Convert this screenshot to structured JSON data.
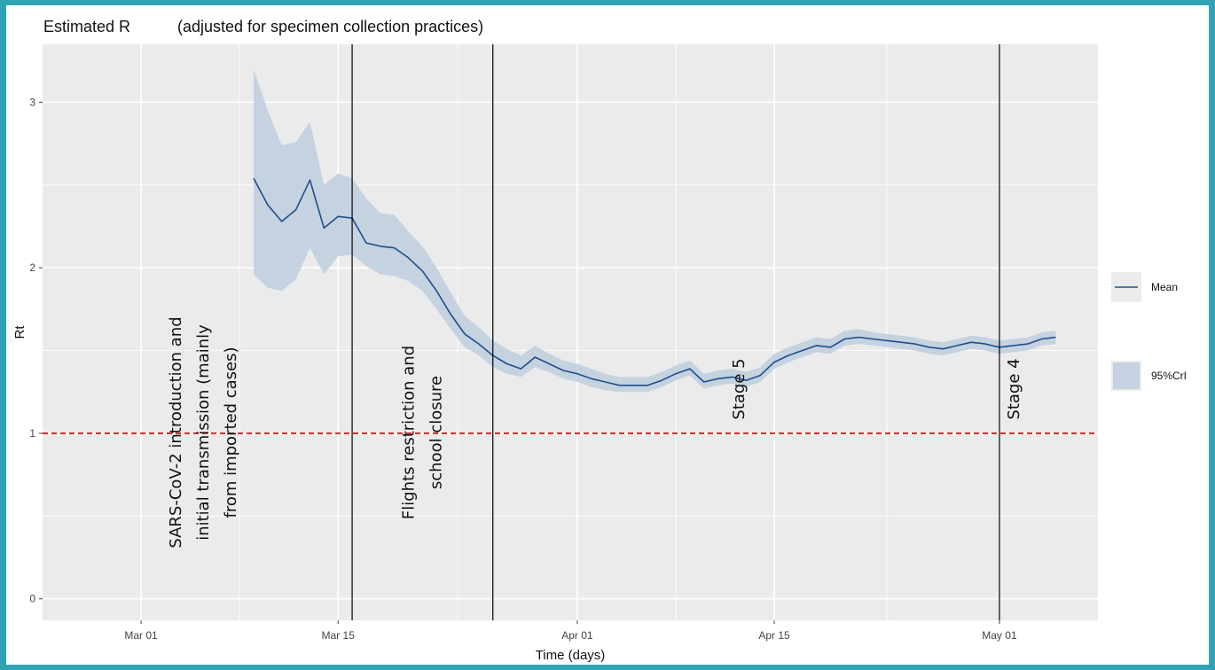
{
  "chart_data": {
    "type": "line",
    "title": "Estimated R",
    "subtitle": "(adjusted for specimen collection practices)",
    "xlabel": "Time (days)",
    "ylabel": "Rt",
    "x_ticks": [
      {
        "date": "2020-03-01",
        "label": "Mar 01"
      },
      {
        "date": "2020-03-15",
        "label": "Mar 15"
      },
      {
        "date": "2020-04-01",
        "label": "Apr 01"
      },
      {
        "date": "2020-04-15",
        "label": "Apr 15"
      },
      {
        "date": "2020-05-01",
        "label": "May 01"
      }
    ],
    "xlim": [
      "2020-02-23",
      "2020-05-08"
    ],
    "y_ticks": [
      0,
      1,
      2,
      3
    ],
    "ylim": [
      -0.13,
      3.35
    ],
    "grid": true,
    "legend_position": "right",
    "series": [
      {
        "name": "Mean",
        "color": "#1f4e8c",
        "points": [
          [
            "2020-03-09",
            2.54
          ],
          [
            "2020-03-10",
            2.38
          ],
          [
            "2020-03-11",
            2.28
          ],
          [
            "2020-03-12",
            2.35
          ],
          [
            "2020-03-13",
            2.53
          ],
          [
            "2020-03-14",
            2.24
          ],
          [
            "2020-03-15",
            2.31
          ],
          [
            "2020-03-16",
            2.3
          ],
          [
            "2020-03-17",
            2.15
          ],
          [
            "2020-03-18",
            2.13
          ],
          [
            "2020-03-19",
            2.12
          ],
          [
            "2020-03-20",
            2.06
          ],
          [
            "2020-03-21",
            1.98
          ],
          [
            "2020-03-22",
            1.86
          ],
          [
            "2020-03-23",
            1.72
          ],
          [
            "2020-03-24",
            1.6
          ],
          [
            "2020-03-25",
            1.54
          ],
          [
            "2020-03-26",
            1.47
          ],
          [
            "2020-03-27",
            1.42
          ],
          [
            "2020-03-28",
            1.39
          ],
          [
            "2020-03-29",
            1.46
          ],
          [
            "2020-03-30",
            1.42
          ],
          [
            "2020-03-31",
            1.38
          ],
          [
            "2020-04-01",
            1.36
          ],
          [
            "2020-04-02",
            1.33
          ],
          [
            "2020-04-03",
            1.31
          ],
          [
            "2020-04-04",
            1.29
          ],
          [
            "2020-04-05",
            1.29
          ],
          [
            "2020-04-06",
            1.29
          ],
          [
            "2020-04-07",
            1.32
          ],
          [
            "2020-04-08",
            1.36
          ],
          [
            "2020-04-09",
            1.39
          ],
          [
            "2020-04-10",
            1.31
          ],
          [
            "2020-04-11",
            1.33
          ],
          [
            "2020-04-12",
            1.34
          ],
          [
            "2020-04-13",
            1.32
          ],
          [
            "2020-04-14",
            1.35
          ],
          [
            "2020-04-15",
            1.43
          ],
          [
            "2020-04-16",
            1.47
          ],
          [
            "2020-04-17",
            1.5
          ],
          [
            "2020-04-18",
            1.53
          ],
          [
            "2020-04-19",
            1.52
          ],
          [
            "2020-04-20",
            1.57
          ],
          [
            "2020-04-21",
            1.58
          ],
          [
            "2020-04-22",
            1.57
          ],
          [
            "2020-04-23",
            1.56
          ],
          [
            "2020-04-24",
            1.55
          ],
          [
            "2020-04-25",
            1.54
          ],
          [
            "2020-04-26",
            1.52
          ],
          [
            "2020-04-27",
            1.51
          ],
          [
            "2020-04-28",
            1.53
          ],
          [
            "2020-04-29",
            1.55
          ],
          [
            "2020-04-30",
            1.54
          ],
          [
            "2020-05-01",
            1.52
          ],
          [
            "2020-05-02",
            1.53
          ],
          [
            "2020-05-03",
            1.54
          ],
          [
            "2020-05-04",
            1.57
          ],
          [
            "2020-05-05",
            1.58
          ]
        ]
      },
      {
        "name": "95%CrI",
        "type": "area",
        "color": "#c5d2e0",
        "points": [
          [
            "2020-03-09",
            1.96,
            3.2
          ],
          [
            "2020-03-10",
            1.88,
            2.95
          ],
          [
            "2020-03-11",
            1.86,
            2.74
          ],
          [
            "2020-03-12",
            1.93,
            2.76
          ],
          [
            "2020-03-13",
            2.12,
            2.88
          ],
          [
            "2020-03-14",
            1.96,
            2.5
          ],
          [
            "2020-03-15",
            2.07,
            2.57
          ],
          [
            "2020-03-16",
            2.08,
            2.54
          ],
          [
            "2020-03-17",
            2.01,
            2.42
          ],
          [
            "2020-03-18",
            1.96,
            2.33
          ],
          [
            "2020-03-19",
            1.95,
            2.32
          ],
          [
            "2020-03-20",
            1.92,
            2.22
          ],
          [
            "2020-03-21",
            1.86,
            2.13
          ],
          [
            "2020-03-22",
            1.75,
            2.0
          ],
          [
            "2020-03-23",
            1.63,
            1.85
          ],
          [
            "2020-03-24",
            1.52,
            1.71
          ],
          [
            "2020-03-25",
            1.47,
            1.64
          ],
          [
            "2020-03-26",
            1.4,
            1.56
          ],
          [
            "2020-03-27",
            1.36,
            1.51
          ],
          [
            "2020-03-28",
            1.34,
            1.47
          ],
          [
            "2020-03-29",
            1.4,
            1.53
          ],
          [
            "2020-03-30",
            1.37,
            1.48
          ],
          [
            "2020-03-31",
            1.33,
            1.44
          ],
          [
            "2020-04-01",
            1.31,
            1.42
          ],
          [
            "2020-04-02",
            1.28,
            1.39
          ],
          [
            "2020-04-03",
            1.26,
            1.36
          ],
          [
            "2020-04-04",
            1.25,
            1.34
          ],
          [
            "2020-04-05",
            1.25,
            1.34
          ],
          [
            "2020-04-06",
            1.25,
            1.34
          ],
          [
            "2020-04-07",
            1.28,
            1.37
          ],
          [
            "2020-04-08",
            1.32,
            1.41
          ],
          [
            "2020-04-09",
            1.35,
            1.44
          ],
          [
            "2020-04-10",
            1.27,
            1.36
          ],
          [
            "2020-04-11",
            1.29,
            1.38
          ],
          [
            "2020-04-12",
            1.3,
            1.39
          ],
          [
            "2020-04-13",
            1.28,
            1.37
          ],
          [
            "2020-04-14",
            1.31,
            1.4
          ],
          [
            "2020-04-15",
            1.39,
            1.48
          ],
          [
            "2020-04-16",
            1.43,
            1.52
          ],
          [
            "2020-04-17",
            1.46,
            1.55
          ],
          [
            "2020-04-18",
            1.49,
            1.58
          ],
          [
            "2020-04-19",
            1.48,
            1.57
          ],
          [
            "2020-04-20",
            1.53,
            1.62
          ],
          [
            "2020-04-21",
            1.54,
            1.63
          ],
          [
            "2020-04-22",
            1.53,
            1.61
          ],
          [
            "2020-04-23",
            1.52,
            1.6
          ],
          [
            "2020-04-24",
            1.51,
            1.59
          ],
          [
            "2020-04-25",
            1.5,
            1.58
          ],
          [
            "2020-04-26",
            1.48,
            1.56
          ],
          [
            "2020-04-27",
            1.47,
            1.55
          ],
          [
            "2020-04-28",
            1.49,
            1.57
          ],
          [
            "2020-04-29",
            1.51,
            1.59
          ],
          [
            "2020-04-30",
            1.5,
            1.58
          ],
          [
            "2020-05-01",
            1.48,
            1.56
          ],
          [
            "2020-05-02",
            1.49,
            1.57
          ],
          [
            "2020-05-03",
            1.5,
            1.58
          ],
          [
            "2020-05-04",
            1.53,
            1.61
          ],
          [
            "2020-05-05",
            1.54,
            1.62
          ]
        ]
      }
    ],
    "reference_line": {
      "y": 1,
      "color": "#cc0000",
      "style": "dashed"
    },
    "vertical_lines": [
      "2020-03-16",
      "2020-03-26",
      "2020-05-01"
    ],
    "annotations": [
      {
        "lines": [
          "SARS-CoV-2 introduction and",
          "initial transmission (mainly",
          "from imported cases)"
        ]
      },
      {
        "lines": [
          "Flights restriction and",
          "school closure"
        ]
      },
      {
        "lines": [
          "Stage 5"
        ]
      },
      {
        "lines": [
          "Stage 4"
        ]
      }
    ],
    "legend": [
      {
        "label": "Mean",
        "kind": "line",
        "color": "#1f4e8c"
      },
      {
        "label": "95%CrI",
        "kind": "fill",
        "color": "#c5d2e0"
      }
    ]
  }
}
